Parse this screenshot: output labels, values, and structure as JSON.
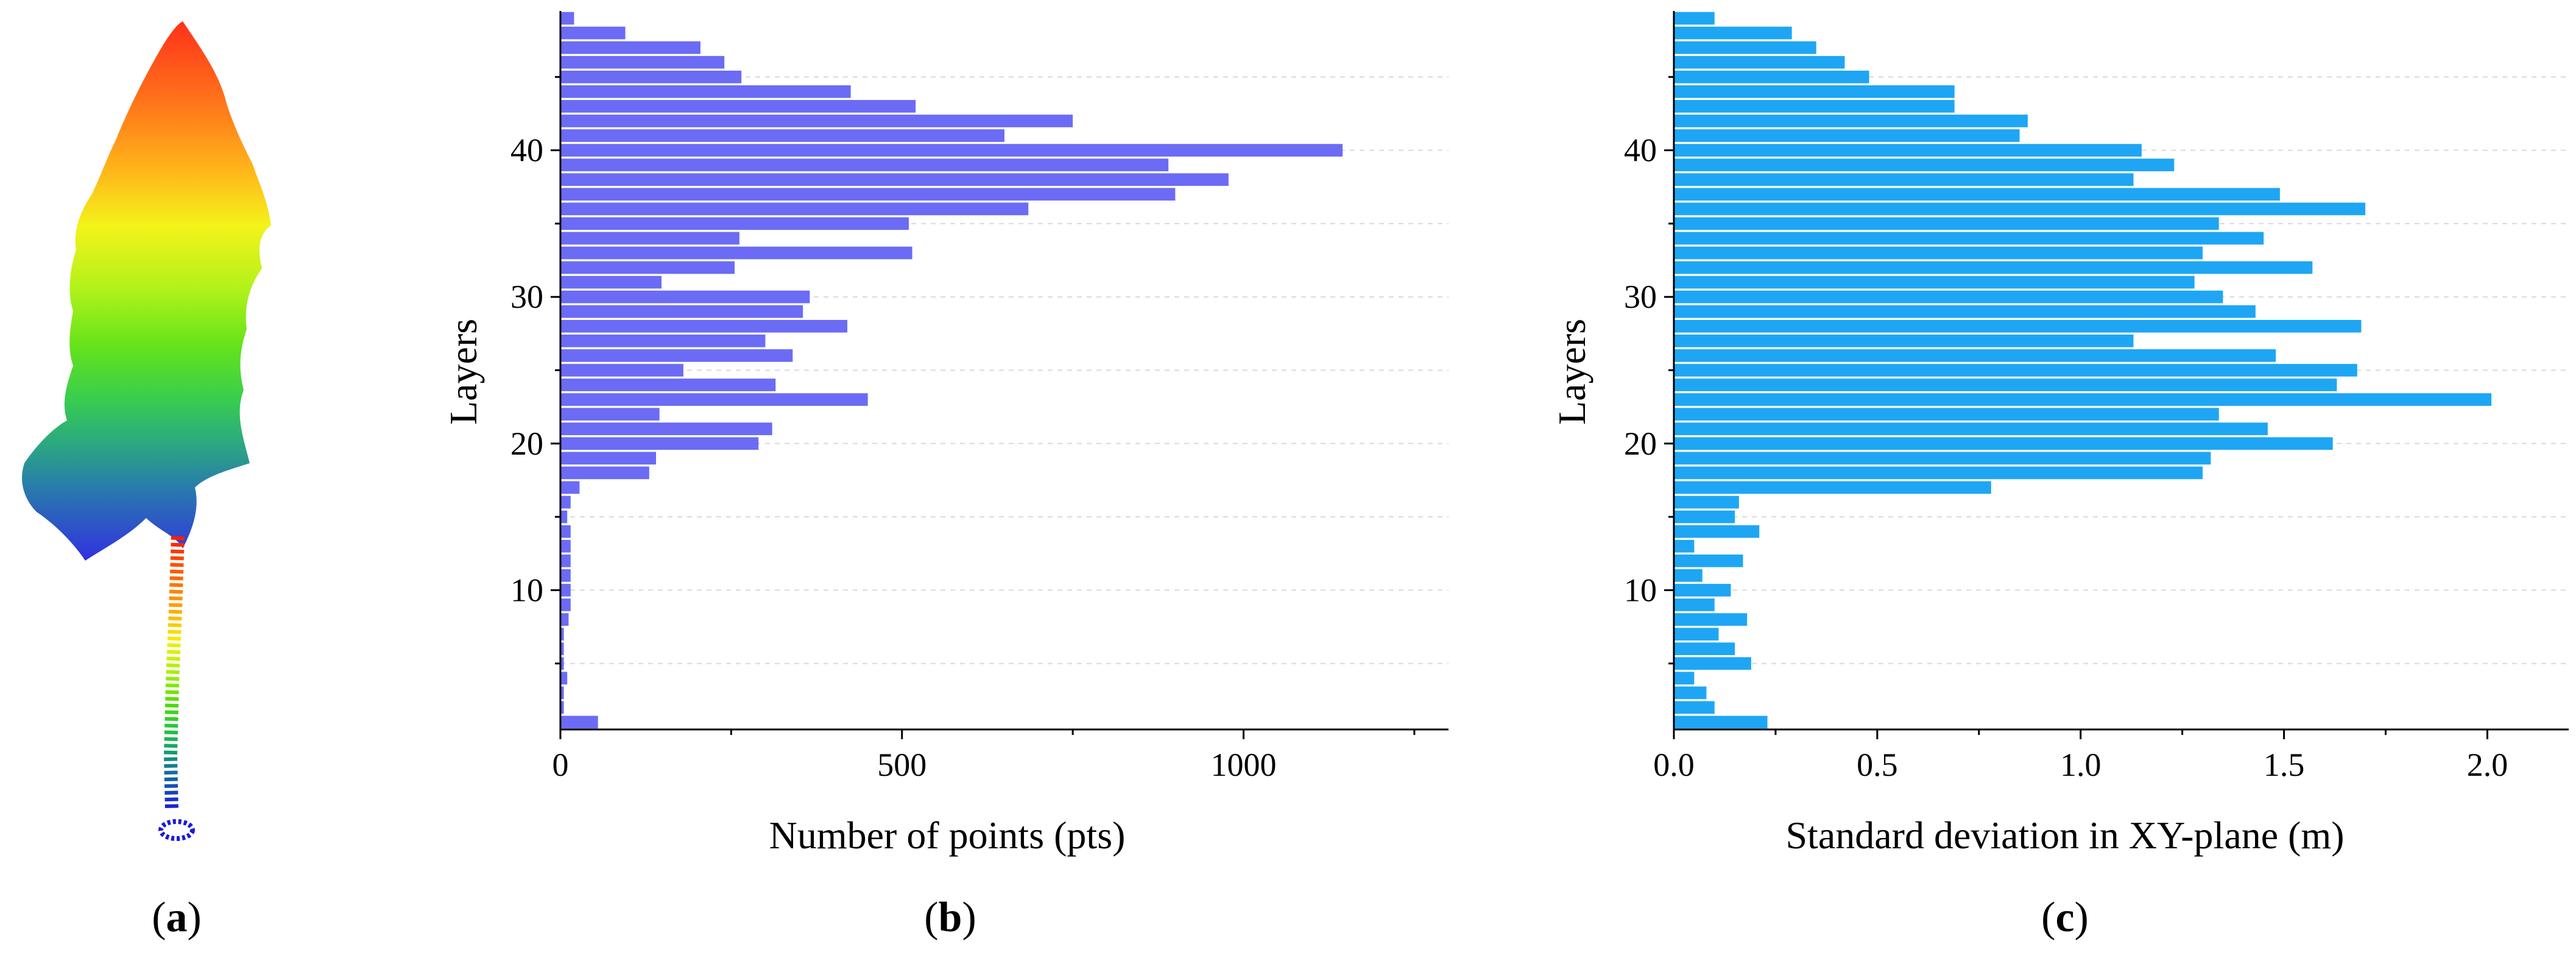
{
  "panel_labels": {
    "a": {
      "open": "(",
      "letter": "a",
      "close": ")"
    },
    "b": {
      "open": "(",
      "letter": "b",
      "close": ")"
    },
    "c": {
      "open": "(",
      "letter": "c",
      "close": ")"
    }
  },
  "colors": {
    "bars_b": "#6b6bf5",
    "bars_c": "#1ea6f4",
    "axis": "#000000",
    "grid": "#d9d9d9"
  },
  "chart_data": [
    {
      "id": "b",
      "type": "bar",
      "orientation": "horizontal",
      "xlabel": "Number of points (pts)",
      "ylabel": "Layers",
      "xlim": [
        0,
        1300
      ],
      "ylim": [
        0.5,
        49.5
      ],
      "xticks": [
        0,
        500,
        1000
      ],
      "yticks": [
        10,
        20,
        30,
        40
      ],
      "grid": "horizontal-dashed",
      "layers": [
        1,
        2,
        3,
        4,
        5,
        6,
        7,
        8,
        9,
        10,
        11,
        12,
        13,
        14,
        15,
        16,
        17,
        18,
        19,
        20,
        21,
        22,
        23,
        24,
        25,
        26,
        27,
        28,
        29,
        30,
        31,
        32,
        33,
        34,
        35,
        36,
        37,
        38,
        39,
        40,
        41,
        42,
        43,
        44,
        45,
        46,
        47,
        48,
        49
      ],
      "values": [
        55,
        5,
        5,
        10,
        5,
        5,
        5,
        12,
        15,
        15,
        15,
        15,
        15,
        15,
        10,
        15,
        28,
        130,
        140,
        290,
        310,
        145,
        450,
        315,
        180,
        340,
        300,
        420,
        355,
        365,
        148,
        255,
        515,
        262,
        510,
        685,
        900,
        978,
        890,
        1145,
        650,
        750,
        520,
        425,
        265,
        240,
        205,
        95,
        20
      ]
    },
    {
      "id": "c",
      "type": "bar",
      "orientation": "horizontal",
      "xlabel": "Standard deviation in XY-plane (m)",
      "ylabel": "Layers",
      "xlim": [
        0,
        2.2
      ],
      "ylim": [
        0.5,
        49.5
      ],
      "xticks": [
        0.0,
        0.5,
        1.0,
        1.5,
        2.0
      ],
      "xtick_labels": [
        "0.0",
        "0.5",
        "1.0",
        "1.5",
        "2.0"
      ],
      "yticks": [
        10,
        20,
        30,
        40
      ],
      "grid": "horizontal-dashed",
      "layers": [
        1,
        2,
        3,
        4,
        5,
        6,
        7,
        8,
        9,
        10,
        11,
        12,
        13,
        14,
        15,
        16,
        17,
        18,
        19,
        20,
        21,
        22,
        23,
        24,
        25,
        26,
        27,
        28,
        29,
        30,
        31,
        32,
        33,
        34,
        35,
        36,
        37,
        38,
        39,
        40,
        41,
        42,
        43,
        44,
        45,
        46,
        47,
        48,
        49
      ],
      "values": [
        0.23,
        0.1,
        0.08,
        0.05,
        0.19,
        0.15,
        0.11,
        0.18,
        0.1,
        0.14,
        0.07,
        0.17,
        0.05,
        0.21,
        0.15,
        0.16,
        0.78,
        1.3,
        1.32,
        1.62,
        1.46,
        1.34,
        2.01,
        1.63,
        1.68,
        1.48,
        1.13,
        1.69,
        1.43,
        1.35,
        1.28,
        1.57,
        1.3,
        1.45,
        1.34,
        1.7,
        1.49,
        1.13,
        1.23,
        1.15,
        0.85,
        0.87,
        0.69,
        0.69,
        0.48,
        0.42,
        0.35,
        0.29,
        0.1
      ]
    }
  ]
}
